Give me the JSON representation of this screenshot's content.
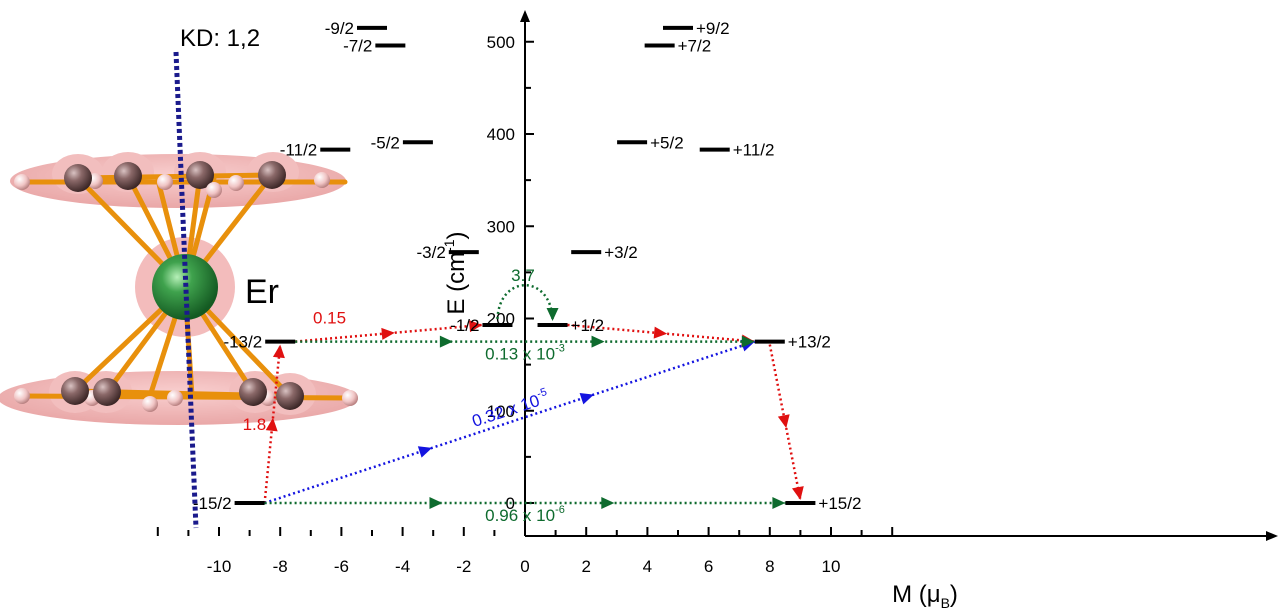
{
  "molecule": {
    "axis_label": "KD: 1,2",
    "atom_label": "Er",
    "colors": {
      "center": "#2e8b3e",
      "ring_atom": "#7a5a5a",
      "hydrogen": "#f0c8c8",
      "bond": "#e8900c",
      "density": "#e88080",
      "axis": "#1a1a8c"
    }
  },
  "chart_data": {
    "type": "scatter",
    "xlabel": "M (μ",
    "xlabel_sub": "B",
    "xlabel_close": ")",
    "ylabel": "E (cm",
    "ylabel_sup": "-1",
    "ylabel_close": ")",
    "xlim": [
      -13.5,
      13.5
    ],
    "ylim": [
      -40,
      540
    ],
    "x_ticks": [
      -10,
      -8,
      -6,
      -4,
      -2,
      0,
      2,
      4,
      6,
      8,
      10
    ],
    "y_ticks": [
      0,
      100,
      200,
      300,
      400,
      500
    ],
    "levels": [
      {
        "label": "-15/2",
        "m": -9.0,
        "e": 0
      },
      {
        "label": "+15/2",
        "m": 9.0,
        "e": 0
      },
      {
        "label": "-13/2",
        "m": -8.0,
        "e": 175
      },
      {
        "label": "+13/2",
        "m": 8.0,
        "e": 175
      },
      {
        "label": "-1/2",
        "m": -0.9,
        "e": 193
      },
      {
        "label": "+1/2",
        "m": 0.9,
        "e": 193
      },
      {
        "label": "-3/2",
        "m": -2.0,
        "e": 272
      },
      {
        "label": "+3/2",
        "m": 2.0,
        "e": 272
      },
      {
        "label": "-11/2",
        "m": -6.2,
        "e": 383
      },
      {
        "label": "+11/2",
        "m": 6.2,
        "e": 383
      },
      {
        "label": "-5/2",
        "m": -3.5,
        "e": 391
      },
      {
        "label": "+5/2",
        "m": 3.5,
        "e": 391
      },
      {
        "label": "-7/2",
        "m": -4.4,
        "e": 496
      },
      {
        "label": "+7/2",
        "m": 4.4,
        "e": 496
      },
      {
        "label": "-9/2",
        "m": -5.0,
        "e": 515
      },
      {
        "label": "+9/2",
        "m": 5.0,
        "e": 515
      }
    ],
    "transitions": [
      {
        "from": "-15/2",
        "to": "-13/2",
        "value": "1.8",
        "color": "#e01010"
      },
      {
        "from": "-13/2",
        "to": "-1/2",
        "value": "0.15",
        "color": "#e01010"
      },
      {
        "from": "+1/2",
        "to": "+13/2",
        "value": "",
        "color": "#e01010"
      },
      {
        "from": "+13/2",
        "to": "+15/2",
        "value": "",
        "color": "#e01010"
      },
      {
        "from": "-15/2",
        "to": "+13/2",
        "value": "0.32 x 10",
        "exp": "-5",
        "color": "#1414e0"
      },
      {
        "from": "-13/2",
        "to": "+13/2",
        "value": "0.13 x 10",
        "exp": "-3",
        "color": "#0e6b2e"
      },
      {
        "from": "-15/2",
        "to": "+15/2",
        "value": "0.96 x 10",
        "exp": "-6",
        "color": "#0e6b2e"
      },
      {
        "from": "-1/2",
        "to": "+1/2",
        "value": "3.7",
        "color": "#0e6b2e"
      }
    ]
  }
}
